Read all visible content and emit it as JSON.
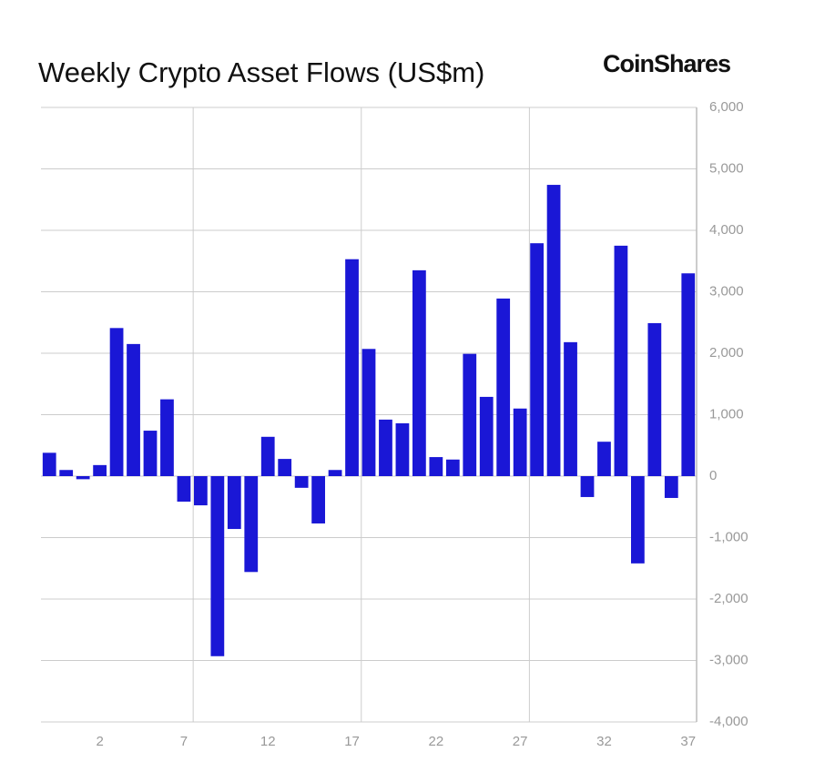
{
  "chart_data": {
    "type": "bar",
    "title": "Weekly Crypto Asset Flows (US$m)",
    "brand": "CoinShares",
    "categories": [
      null,
      null,
      null,
      "2",
      null,
      null,
      null,
      null,
      "7",
      null,
      null,
      null,
      null,
      "12",
      null,
      null,
      null,
      null,
      "17",
      null,
      null,
      null,
      null,
      "22",
      null,
      null,
      null,
      null,
      "27",
      null,
      null,
      null,
      null,
      "32",
      null,
      null,
      null,
      null,
      "37"
    ],
    "values": [
      380,
      100,
      -50,
      180,
      2410,
      2150,
      740,
      1250,
      -415,
      -475,
      -2930,
      -860,
      -1560,
      640,
      280,
      -190,
      -770,
      100,
      3530,
      2070,
      920,
      860,
      3350,
      310,
      270,
      1990,
      1290,
      2890,
      1100,
      3790,
      4740,
      2180,
      -340,
      560,
      3750,
      -1420,
      2490,
      -355,
      3300
    ],
    "color": "#1a17d6",
    "ylim": [
      -4000,
      6000
    ],
    "yticks": [
      {
        "value": -4000,
        "label": "-4,000"
      },
      {
        "value": -3000,
        "label": "-3,000"
      },
      {
        "value": -2000,
        "label": "-2,000"
      },
      {
        "value": -1000,
        "label": "-1,000"
      },
      0,
      {
        "value": 1000,
        "label": "1,000"
      },
      {
        "value": 2000,
        "label": "2,000"
      },
      {
        "value": 3000,
        "label": "3,000"
      },
      {
        "value": 4000,
        "label": "4,000"
      },
      {
        "value": 5000,
        "label": "5,000"
      },
      {
        "value": 6000,
        "label": "6,000"
      }
    ],
    "grid": true,
    "y_axis_side": "right"
  }
}
